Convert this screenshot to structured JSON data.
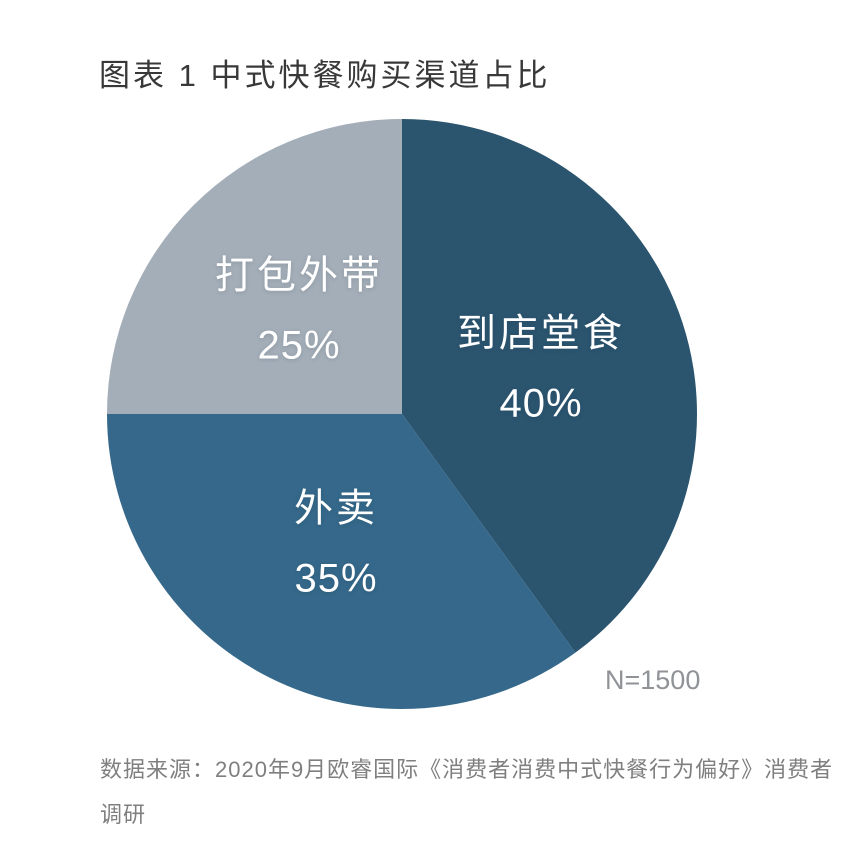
{
  "figure": {
    "title": "图表 1  中式快餐购买渠道占比",
    "sample_note": "N=1500",
    "source": {
      "line1": "数据来源：2020年9月欧睿国际《消费者消费中式快餐行为偏好》消费者",
      "line2": "调研"
    }
  },
  "chart_data": {
    "type": "pie",
    "figure_label": "图表 1",
    "title": "中式快餐购买渠道占比",
    "start_angle_deg": 0,
    "direction": "clockwise",
    "legend_position": "none",
    "labels_inside": true,
    "label_text_color": "#ffffff",
    "sample_size_note": "N=1500",
    "categories": [
      "到店堂食",
      "外卖",
      "打包外带"
    ],
    "values": [
      40,
      35,
      25
    ],
    "slices": [
      {
        "label": "到店堂食",
        "value": 40,
        "percent_label": "40%",
        "color": "#2B546F"
      },
      {
        "label": "外卖",
        "value": 35,
        "percent_label": "35%",
        "color": "#35688A"
      },
      {
        "label": "打包外带",
        "value": 25,
        "percent_label": "25%",
        "color": "#A4AEB8"
      }
    ]
  }
}
